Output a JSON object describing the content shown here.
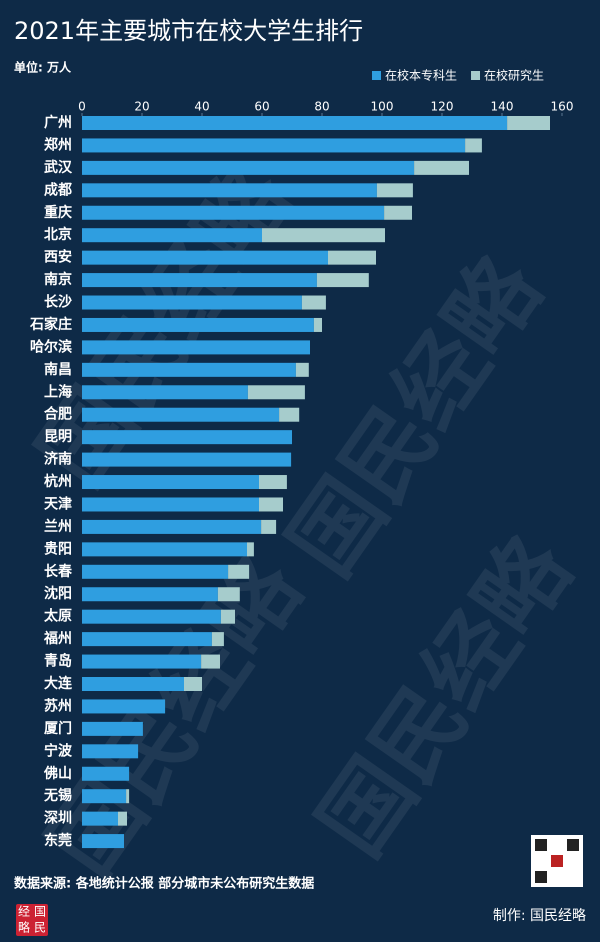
{
  "chart_data": {
    "type": "stacked-barh",
    "title": "2021年主要城市在校大学生排行",
    "subtitle": "单位: 万人",
    "source": "数据来源: 各地统计公报  部分城市未公布研究生数据",
    "credit": "制作: 国民经略",
    "watermark": "国民经略",
    "logo": [
      "经",
      "国",
      "略",
      "民"
    ],
    "categories": [
      "广州",
      "郑州",
      "武汉",
      "成都",
      "重庆",
      "北京",
      "西安",
      "南京",
      "长沙",
      "石家庄",
      "哈尔滨",
      "南昌",
      "上海",
      "合肥",
      "昆明",
      "济南",
      "杭州",
      "天津",
      "兰州",
      "贵阳",
      "长春",
      "沈阳",
      "太原",
      "福州",
      "青岛",
      "大连",
      "苏州",
      "厦门",
      "宁波",
      "佛山",
      "无锡",
      "深圳",
      "东莞"
    ],
    "series": [
      {
        "name": "在校本专科生",
        "color": "#2f9ee0",
        "values": [
          141.7,
          127.7,
          110.7,
          98.3,
          100.7,
          60,
          82,
          78.3,
          73.3,
          77.3,
          76,
          71.3,
          55.3,
          65.7,
          70,
          69.7,
          59,
          59,
          59.7,
          55,
          48.7,
          45.3,
          46.3,
          43.3,
          39.7,
          34,
          27.7,
          20.3,
          18.7,
          15.7,
          14.7,
          12,
          14
        ]
      },
      {
        "name": "在校研究生",
        "color": "#a6cccc",
        "values": [
          14.3,
          5.6,
          18.3,
          12,
          9.3,
          41,
          16,
          17.3,
          8,
          2.7,
          null,
          4.3,
          19,
          6.7,
          null,
          null,
          9.3,
          8,
          5,
          2.3,
          7,
          7.3,
          4.7,
          4,
          6.3,
          6,
          null,
          null,
          null,
          null,
          1,
          3,
          null
        ]
      }
    ],
    "xlim": [
      0,
      160
    ],
    "xticks": [
      0,
      20,
      40,
      60,
      80,
      100,
      120,
      140,
      160
    ],
    "legend": "top-right"
  }
}
